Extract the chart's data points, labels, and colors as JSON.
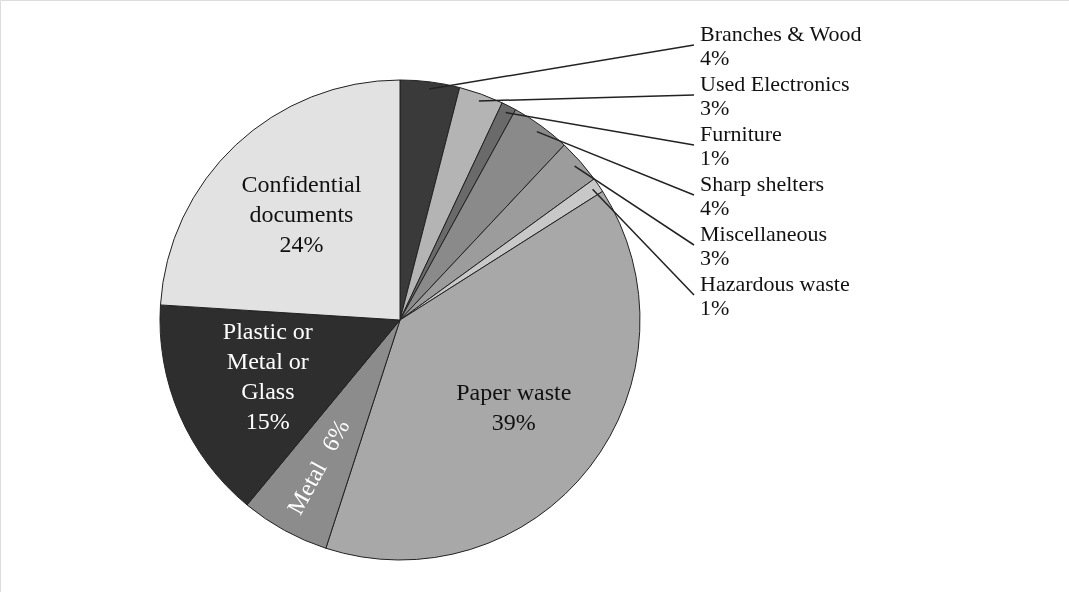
{
  "chart_data": {
    "type": "pie",
    "categories": [
      "Branches & Wood",
      "Used Electronics",
      "Furniture",
      "Sharp shelters",
      "Miscellaneous",
      "Hazardous waste",
      "Paper waste",
      "Metal",
      "Plastic or Metal or Glass",
      "Confidential documents"
    ],
    "values": [
      4,
      3,
      1,
      4,
      3,
      1,
      39,
      6,
      15,
      24
    ],
    "colors": [
      "#3a3a3a",
      "#b4b4b4",
      "#6a6a6a",
      "#8a8a8a",
      "#9c9c9c",
      "#c8c8c8",
      "#a8a8a8",
      "#8c8c8c",
      "#2e2e2e",
      "#e2e2e2"
    ],
    "value_labels": [
      "4%",
      "3%",
      "1%",
      "4%",
      "3%",
      "1%",
      "39%",
      "6%",
      "15%",
      "24%"
    ]
  }
}
